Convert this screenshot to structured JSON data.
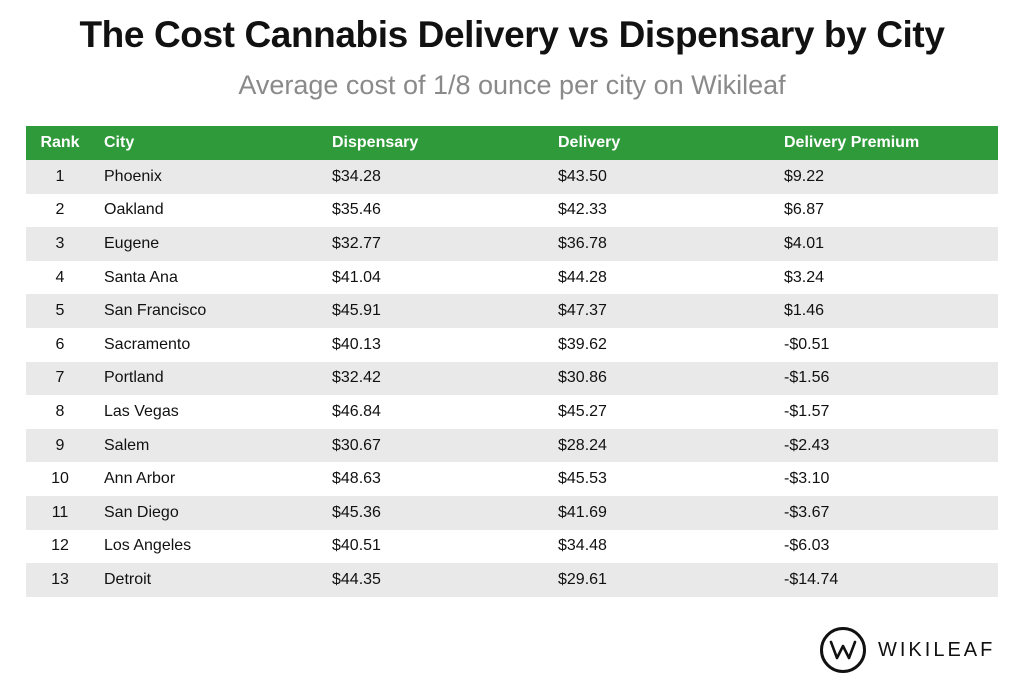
{
  "title": "The Cost Cannabis Delivery vs Dispensary by City",
  "subtitle": "Average cost of 1/8 ounce per city on Wikileaf",
  "colors": {
    "header_bg": "#2f9a3a",
    "header_text": "#ffffff",
    "stripe": "#e9e9e9"
  },
  "logo": {
    "icon": "w-circle-logo-icon",
    "text": "WIKILEAF"
  },
  "chart_data": {
    "type": "table",
    "title": "The Cost Cannabis Delivery vs Dispensary by City",
    "subtitle": "Average cost of 1/8 ounce per city on Wikileaf",
    "columns": [
      "Rank",
      "City",
      "Dispensary",
      "Delivery",
      "Delivery Premium"
    ],
    "rows": [
      [
        "1",
        "Phoenix",
        "$34.28",
        "$43.50",
        "$9.22"
      ],
      [
        "2",
        "Oakland",
        "$35.46",
        "$42.33",
        "$6.87"
      ],
      [
        "3",
        "Eugene",
        "$32.77",
        "$36.78",
        "$4.01"
      ],
      [
        "4",
        "Santa Ana",
        "$41.04",
        "$44.28",
        "$3.24"
      ],
      [
        "5",
        "San Francisco",
        "$45.91",
        "$47.37",
        "$1.46"
      ],
      [
        "6",
        "Sacramento",
        "$40.13",
        "$39.62",
        "-$0.51"
      ],
      [
        "7",
        "Portland",
        "$32.42",
        "$30.86",
        "-$1.56"
      ],
      [
        "8",
        "Las Vegas",
        "$46.84",
        "$45.27",
        "-$1.57"
      ],
      [
        "9",
        "Salem",
        "$30.67",
        "$28.24",
        "-$2.43"
      ],
      [
        "10",
        "Ann Arbor",
        "$48.63",
        "$45.53",
        "-$3.10"
      ],
      [
        "11",
        "San Diego",
        "$45.36",
        "$41.69",
        "-$3.67"
      ],
      [
        "12",
        "Los Angeles",
        "$40.51",
        "$34.48",
        "-$6.03"
      ],
      [
        "13",
        "Detroit",
        "$44.35",
        "$29.61",
        "-$14.74"
      ]
    ]
  }
}
